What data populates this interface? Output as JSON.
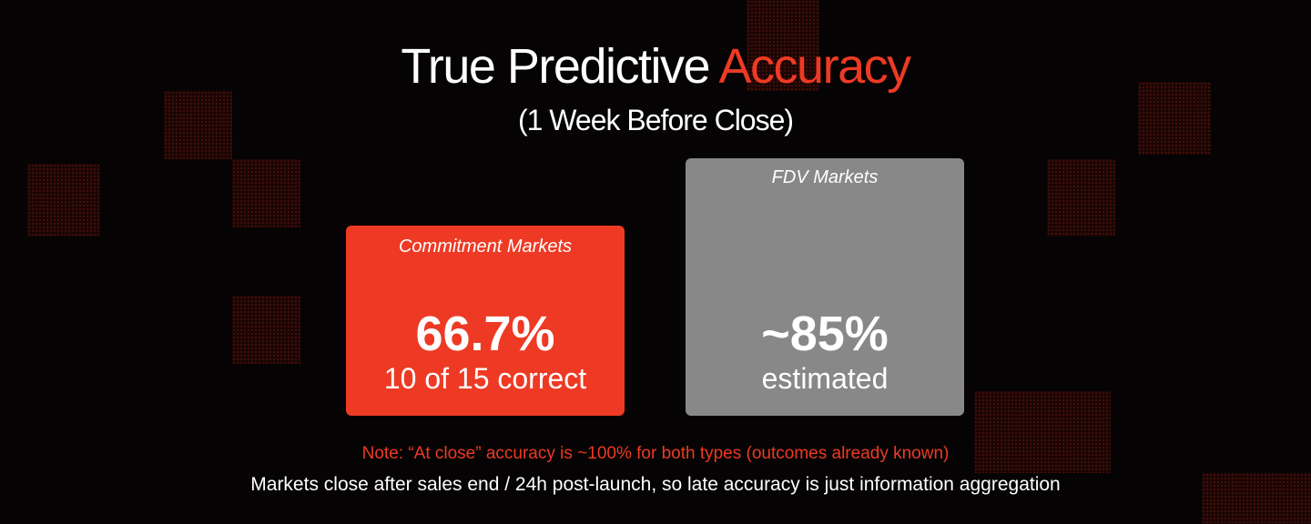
{
  "title": {
    "main": "True Predictive",
    "accent": "Accuracy"
  },
  "subtitle": "(1 Week Before Close)",
  "colors": {
    "accent": "#ee3a24",
    "neutral_card": "#888888",
    "background": "#050303"
  },
  "cards": [
    {
      "label": "Commitment Markets",
      "value": "66.7%",
      "sub": "10 of 15 correct"
    },
    {
      "label": "FDV Markets",
      "value": "~85%",
      "sub": "estimated"
    }
  ],
  "note": "Note: “At close” accuracy is ~100% for both types (outcomes already known)",
  "footer": "Markets close after sales end / 24h post-launch, so late accuracy is just information aggregation"
}
